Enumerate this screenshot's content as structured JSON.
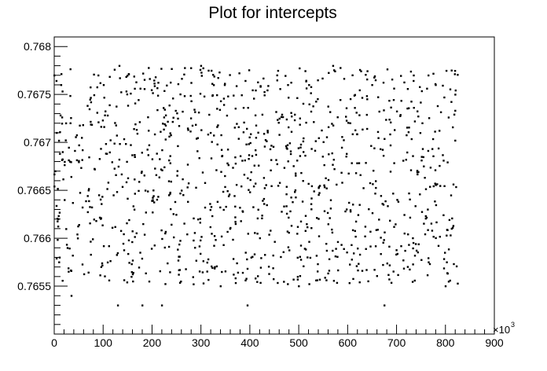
{
  "chart_data": {
    "type": "scatter",
    "title": "Plot for intercepts",
    "xlabel": "",
    "ylabel": "",
    "xlim": [
      0,
      900
    ],
    "ylim": [
      0.765,
      0.7681
    ],
    "x_scale_label": "×10",
    "x_scale_exponent": "3",
    "x_ticks": [
      0,
      100,
      200,
      300,
      400,
      500,
      600,
      700,
      800,
      900
    ],
    "x_tick_labels": [
      "0",
      "100",
      "200",
      "300",
      "400",
      "500",
      "600",
      "700",
      "800",
      "900"
    ],
    "y_ticks": [
      0.7655,
      0.766,
      0.7665,
      0.767,
      0.7675,
      0.768
    ],
    "y_tick_labels": [
      "0.7655",
      "0.766",
      "0.7665",
      "0.767",
      "0.7675",
      "0.768"
    ],
    "grid": false,
    "marker_color": "#000000",
    "point_count": 1100,
    "x_range_of_points": [
      0,
      825
    ],
    "points_sample": [
      [
        0,
        0.7677
      ],
      [
        2,
        0.7667
      ],
      [
        5,
        0.7671
      ],
      [
        8,
        0.7662
      ],
      [
        11,
        0.7658
      ],
      [
        14,
        0.7676
      ],
      [
        17,
        0.7669
      ],
      [
        21,
        0.7664
      ],
      [
        24,
        0.7672
      ],
      [
        27,
        0.7659
      ],
      [
        35,
        0.7654
      ],
      [
        48,
        0.766
      ],
      [
        70,
        0.7665
      ],
      [
        90,
        0.7677
      ],
      [
        101,
        0.7676
      ],
      [
        130,
        0.7653
      ],
      [
        133,
        0.7678
      ],
      [
        180,
        0.7653
      ],
      [
        220,
        0.7653
      ],
      [
        300,
        0.7678
      ],
      [
        340,
        0.7655
      ],
      [
        395,
        0.7653
      ],
      [
        500,
        0.7655
      ],
      [
        570,
        0.7678
      ],
      [
        675,
        0.7653
      ],
      [
        735,
        0.7677
      ],
      [
        765,
        0.7677
      ],
      [
        780,
        0.7676
      ],
      [
        800,
        0.7655
      ],
      [
        820,
        0.7675
      ]
    ]
  }
}
